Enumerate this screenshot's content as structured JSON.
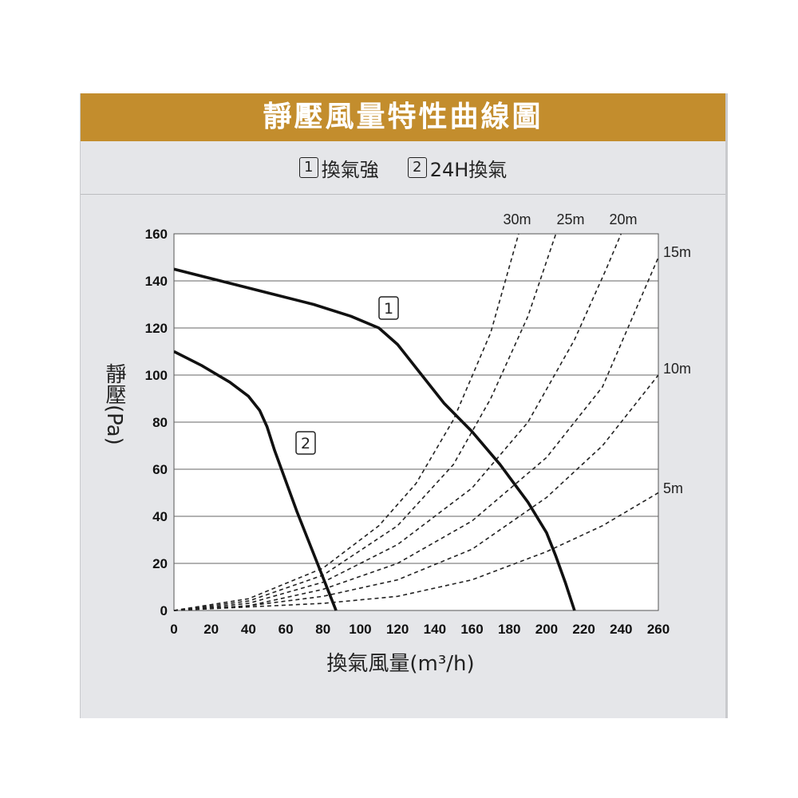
{
  "header": {
    "title": "靜壓風量特性曲線圖"
  },
  "legend": [
    {
      "number": "1",
      "label": "換氣強"
    },
    {
      "number": "2",
      "label": "24H換氣"
    }
  ],
  "colors": {
    "banner": "#c38d2d",
    "panel": "#e5e6e9",
    "curve": "#111111",
    "duct": "#222222"
  },
  "chart_data": {
    "type": "line",
    "title": "",
    "xlabel": "換氣風量(m³/h)",
    "ylabel": "靜壓(Pa)",
    "xlim": [
      0,
      260
    ],
    "ylim": [
      0,
      160
    ],
    "x_ticks": [
      0,
      20,
      40,
      60,
      80,
      100,
      120,
      140,
      160,
      180,
      200,
      220,
      240,
      260
    ],
    "y_ticks": [
      0,
      20,
      40,
      60,
      80,
      100,
      120,
      140,
      160
    ],
    "grid": "horizontal",
    "series": [
      {
        "name": "1",
        "style": "solid",
        "points": [
          [
            0,
            145
          ],
          [
            25,
            140
          ],
          [
            50,
            135
          ],
          [
            75,
            130
          ],
          [
            95,
            125
          ],
          [
            110,
            120
          ],
          [
            120,
            113
          ],
          [
            130,
            103
          ],
          [
            145,
            88
          ],
          [
            160,
            76
          ],
          [
            175,
            62
          ],
          [
            190,
            46
          ],
          [
            200,
            33
          ],
          [
            205,
            23
          ],
          [
            210,
            12
          ],
          [
            215,
            0
          ]
        ]
      },
      {
        "name": "2",
        "style": "solid",
        "points": [
          [
            0,
            110
          ],
          [
            15,
            104
          ],
          [
            30,
            97
          ],
          [
            40,
            91
          ],
          [
            46,
            85
          ],
          [
            50,
            78
          ],
          [
            54,
            68
          ],
          [
            60,
            55
          ],
          [
            66,
            42
          ],
          [
            72,
            30
          ],
          [
            78,
            18
          ],
          [
            84,
            6
          ],
          [
            87,
            0
          ]
        ]
      }
    ],
    "duct_curves": [
      {
        "name": "30m",
        "points": [
          [
            0,
            0
          ],
          [
            40,
            5
          ],
          [
            80,
            18
          ],
          [
            110,
            36
          ],
          [
            130,
            54
          ],
          [
            150,
            81
          ],
          [
            170,
            118
          ],
          [
            185,
            160
          ]
        ]
      },
      {
        "name": "25m",
        "points": [
          [
            0,
            0
          ],
          [
            40,
            4
          ],
          [
            80,
            15
          ],
          [
            120,
            36
          ],
          [
            150,
            62
          ],
          [
            170,
            90
          ],
          [
            190,
            125
          ],
          [
            205,
            160
          ]
        ]
      },
      {
        "name": "20m",
        "points": [
          [
            0,
            0
          ],
          [
            40,
            3
          ],
          [
            80,
            12
          ],
          [
            120,
            28
          ],
          [
            160,
            52
          ],
          [
            190,
            80
          ],
          [
            215,
            115
          ],
          [
            232,
            145
          ],
          [
            240,
            160
          ]
        ]
      },
      {
        "name": "15m",
        "points": [
          [
            0,
            0
          ],
          [
            40,
            2
          ],
          [
            80,
            9
          ],
          [
            120,
            20
          ],
          [
            160,
            38
          ],
          [
            200,
            65
          ],
          [
            230,
            95
          ],
          [
            260,
            150
          ]
        ]
      },
      {
        "name": "10m",
        "points": [
          [
            0,
            0
          ],
          [
            40,
            2
          ],
          [
            80,
            6
          ],
          [
            120,
            13
          ],
          [
            160,
            26
          ],
          [
            200,
            48
          ],
          [
            230,
            70
          ],
          [
            260,
            100
          ]
        ]
      },
      {
        "name": "5m",
        "points": [
          [
            0,
            0
          ],
          [
            80,
            3
          ],
          [
            120,
            6
          ],
          [
            160,
            13
          ],
          [
            200,
            25
          ],
          [
            230,
            36
          ],
          [
            260,
            50
          ]
        ]
      }
    ]
  }
}
